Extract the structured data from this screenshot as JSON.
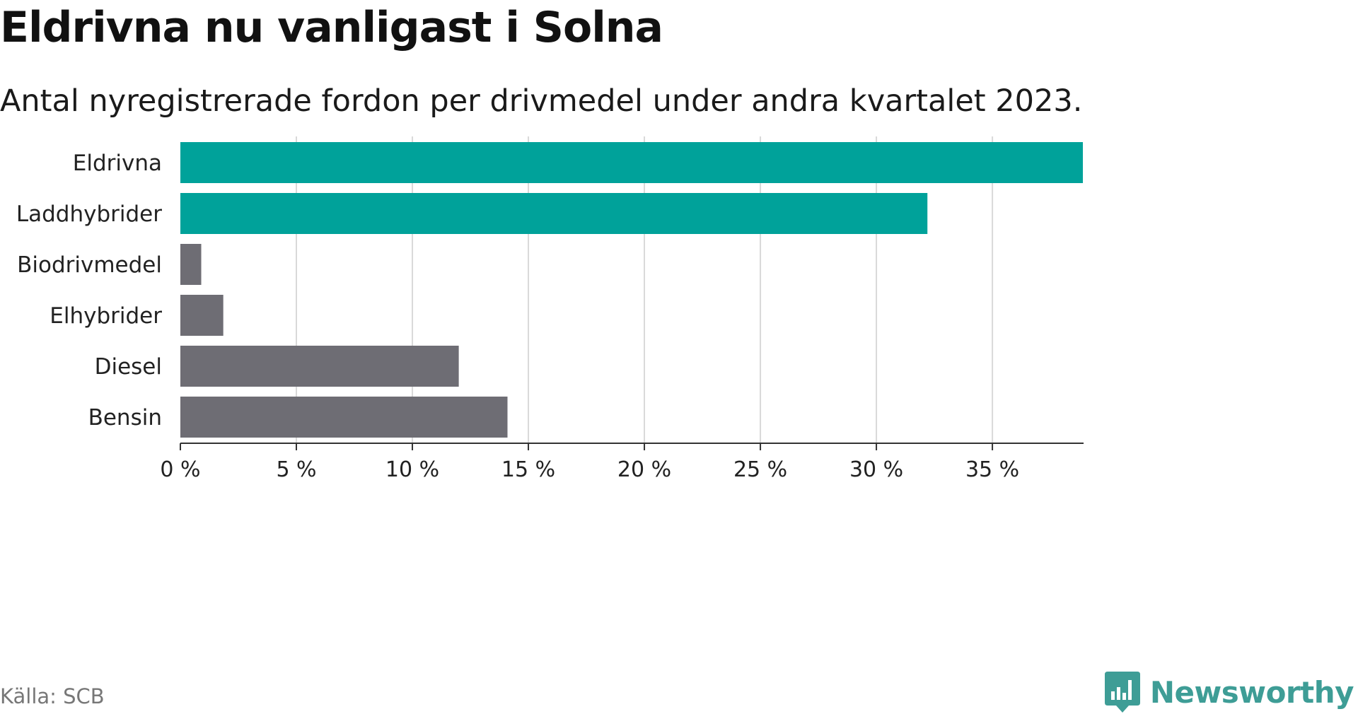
{
  "header": {
    "title": "Eldrivna nu vanligast i Solna",
    "subtitle": "Antal nyregistrerade fordon per drivmedel under andra kvartalet 2023."
  },
  "footer": {
    "source": "Källa: SCB",
    "brand": "Newsworthy",
    "brand_icon": "newsworthy-logo-icon"
  },
  "colors": {
    "highlight": "#00a29a",
    "default": "#6e6d74",
    "grid": "#d9d9d9",
    "axis": "#333333",
    "brand": "#3e9d96"
  },
  "chart_data": {
    "type": "bar",
    "orientation": "horizontal",
    "title": "Eldrivna nu vanligast i Solna",
    "subtitle": "Antal nyregistrerade fordon per drivmedel under andra kvartalet 2023.",
    "categories": [
      "Eldrivna",
      "Laddhybrider",
      "Biodrivmedel",
      "Elhybrider",
      "Diesel",
      "Bensin"
    ],
    "values": [
      38.9,
      32.2,
      0.9,
      1.85,
      12.0,
      14.1
    ],
    "highlighted": [
      true,
      true,
      false,
      false,
      false,
      false
    ],
    "unit": "%",
    "xlim": [
      0,
      38.9
    ],
    "xticks": [
      0,
      5,
      10,
      15,
      20,
      25,
      30,
      35
    ],
    "xtick_labels": [
      "0 %",
      "5 %",
      "10 %",
      "15 %",
      "20 %",
      "25 %",
      "30 %",
      "35 %"
    ],
    "grid": true,
    "xlabel": "",
    "ylabel": ""
  }
}
